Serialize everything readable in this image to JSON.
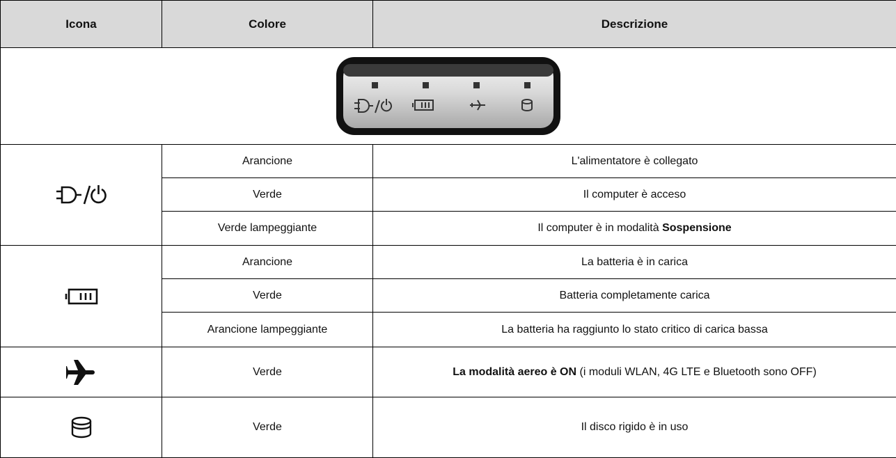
{
  "table": {
    "header": [
      "Icona",
      "Colore",
      "Descrizione"
    ],
    "groups": [
      {
        "rows": [
          {
            "color": "Arancione",
            "description": [
              {
                "text": "L'alimentatore è collegato"
              }
            ]
          },
          {
            "color": "Verde",
            "description": [
              {
                "text": "Il computer è acceso"
              }
            ]
          },
          {
            "color": "Verde lampeggiante",
            "description": [
              {
                "text": "Il computer è in modalità "
              },
              {
                "text": "Sospensione",
                "bold": true
              }
            ]
          }
        ]
      },
      {
        "rows": [
          {
            "color": "Arancione",
            "description": [
              {
                "text": "La batteria è in carica"
              }
            ]
          },
          {
            "color": "Verde",
            "description": [
              {
                "text": "Batteria completamente carica"
              }
            ]
          },
          {
            "color": "Arancione lampeggiante",
            "description": [
              {
                "text": "La batteria ha raggiunto lo stato critico di carica bassa"
              }
            ]
          }
        ]
      },
      {
        "rows": [
          {
            "color": "Verde",
            "description": [
              {
                "text": "La modalità aereo è ON",
                "bold": true
              },
              {
                "text": " (i moduli WLAN, 4G LTE e Bluetooth sono OFF)"
              }
            ]
          }
        ]
      },
      {
        "rows": [
          {
            "color": "Verde",
            "description": [
              {
                "text": "Il disco rigido è in uso"
              }
            ]
          }
        ]
      }
    ]
  }
}
